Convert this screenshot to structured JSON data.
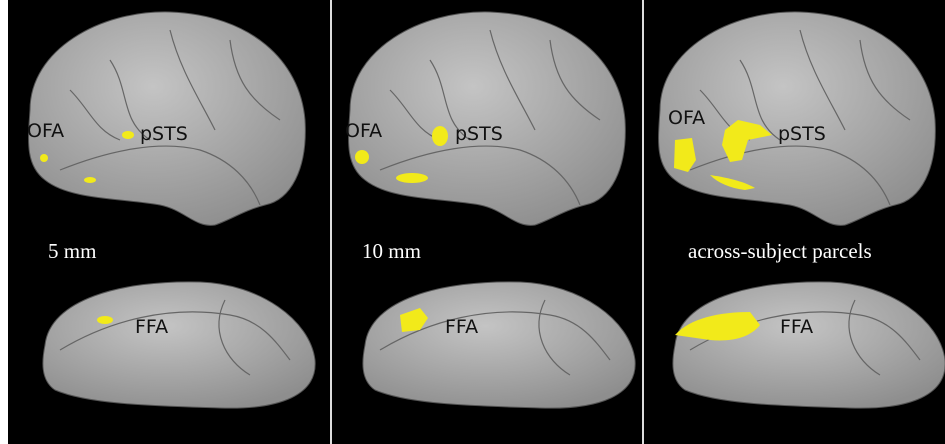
{
  "panels": [
    {
      "caption": "5 mm",
      "labels": {
        "ofa": "OFA",
        "psts": "pSTS",
        "ffa": "FFA"
      }
    },
    {
      "caption": "10 mm",
      "labels": {
        "ofa": "OFA",
        "psts": "pSTS",
        "ffa": "FFA"
      }
    },
    {
      "caption": "across-subject parcels",
      "labels": {
        "ofa": "OFA",
        "psts": "pSTS",
        "ffa": "FFA"
      }
    }
  ]
}
